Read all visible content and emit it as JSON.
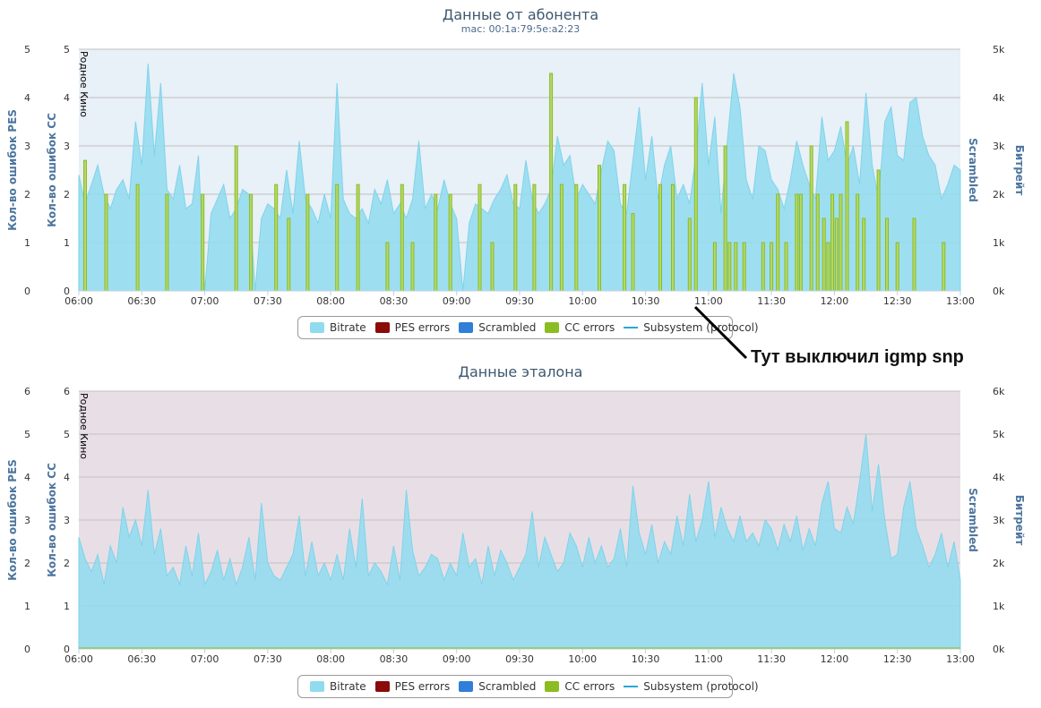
{
  "annotation": {
    "text": "Тут выключил igmp snp"
  },
  "chart_data": [
    {
      "type": "area",
      "title": "Данные от абонента",
      "subtitle": "mac: 00:1a:79:5e:a2:23",
      "plot_band_label": "Родное Кино",
      "background_color": "#e8f0f8",
      "left_axes": [
        {
          "title": "Кол-во ошибок PES",
          "range": [
            0,
            5
          ],
          "ticks": [
            "0",
            "1",
            "2",
            "3",
            "4",
            "5"
          ]
        },
        {
          "title": "Кол-во ошибок CC",
          "range": [
            0,
            5
          ],
          "ticks": [
            "0",
            "1",
            "2",
            "3",
            "4",
            "5"
          ]
        }
      ],
      "right_axes": [
        {
          "title": "Scrambled"
        },
        {
          "title": "Битрейт",
          "range": [
            0,
            5000
          ],
          "ticks": [
            "0k",
            "1k",
            "2k",
            "3k",
            "4k",
            "5k"
          ]
        }
      ],
      "x_axis": {
        "range_minutes": [
          0,
          420
        ],
        "ticks": [
          "06:00",
          "06:30",
          "07:00",
          "07:30",
          "08:00",
          "08:30",
          "09:00",
          "09:30",
          "10:00",
          "10:30",
          "11:00",
          "11:30",
          "12:00",
          "12:30",
          "13:00"
        ]
      },
      "legend": [
        {
          "name": "Bitrate",
          "color": "#8fdcef",
          "kind": "area"
        },
        {
          "name": "PES errors",
          "color": "#8b0a0a",
          "kind": "area"
        },
        {
          "name": "Scrambled",
          "color": "#2f7ed8",
          "kind": "area"
        },
        {
          "name": "CC errors",
          "color": "#8bbc21",
          "kind": "area"
        },
        {
          "name": "Subsystem (protocol)",
          "color": "#2aa7d8",
          "kind": "line"
        }
      ],
      "series": [
        {
          "name": "Bitrate",
          "color": "#8fdcef",
          "x_minutes": [
            0,
            3,
            6,
            9,
            12,
            15,
            18,
            21,
            24,
            27,
            30,
            33,
            36,
            39,
            42,
            45,
            48,
            51,
            54,
            57,
            60,
            63,
            66,
            69,
            72,
            75,
            78,
            81,
            84,
            87,
            90,
            93,
            96,
            99,
            102,
            105,
            108,
            111,
            114,
            117,
            120,
            123,
            126,
            129,
            132,
            135,
            138,
            141,
            144,
            147,
            150,
            153,
            156,
            159,
            162,
            165,
            168,
            171,
            174,
            177,
            180,
            183,
            186,
            189,
            192,
            195,
            198,
            201,
            204,
            207,
            210,
            213,
            216,
            219,
            222,
            225,
            228,
            231,
            234,
            237,
            240,
            243,
            246,
            249,
            252,
            255,
            258,
            261,
            264,
            267,
            270,
            273,
            276,
            279,
            282,
            285,
            288,
            291,
            294,
            297,
            300,
            303,
            306,
            309,
            312,
            315,
            318,
            321,
            324,
            327,
            330,
            333,
            336,
            339,
            342,
            345,
            348,
            351,
            354,
            357,
            360,
            363,
            366,
            369,
            372,
            375,
            378,
            381,
            384,
            387,
            390,
            393,
            396,
            399,
            402,
            405,
            408,
            411,
            414,
            417,
            420
          ],
          "values": [
            2400,
            1800,
            2200,
            2600,
            2000,
            1700,
            2100,
            2300,
            1900,
            3500,
            2600,
            4700,
            2800,
            4300,
            2100,
            1900,
            2600,
            1700,
            1800,
            2800,
            0,
            1600,
            1900,
            2200,
            1500,
            1700,
            2100,
            2000,
            0,
            1500,
            1800,
            1700,
            1500,
            2500,
            1600,
            3100,
            1900,
            1700,
            1400,
            2000,
            1500,
            4300,
            1900,
            1600,
            1500,
            1700,
            1400,
            2100,
            1800,
            2300,
            1600,
            1800,
            1500,
            1900,
            3100,
            1700,
            2000,
            1700,
            2300,
            1800,
            1500,
            0,
            1400,
            1800,
            1700,
            1600,
            1900,
            2100,
            2400,
            1800,
            1700,
            2700,
            1900,
            1600,
            1800,
            2100,
            3200,
            2600,
            2800,
            1900,
            2200,
            2000,
            1800,
            2500,
            3100,
            2900,
            1800,
            1600,
            2700,
            3800,
            2300,
            3200,
            1900,
            2600,
            3000,
            1900,
            2200,
            1800,
            2800,
            4300,
            2600,
            3600,
            1600,
            3100,
            4500,
            3800,
            2300,
            1900,
            3000,
            2900,
            2300,
            2100,
            1700,
            2300,
            3100,
            2600,
            2200,
            1900,
            3600,
            2700,
            2900,
            3400,
            2600,
            3000,
            2200,
            4100,
            2600,
            1900,
            3500,
            3800,
            2800,
            2700,
            3900,
            4000,
            3200,
            2800,
            2600,
            1900,
            2200,
            2600,
            2500
          ]
        },
        {
          "name": "CC errors",
          "color": "#8bbc21",
          "x_minutes": [
            3,
            13,
            28,
            42,
            59,
            75,
            82,
            94,
            100,
            109,
            123,
            133,
            147,
            154,
            159,
            170,
            177,
            191,
            197,
            208,
            217,
            225,
            230,
            237,
            248,
            260,
            264,
            277,
            283,
            291,
            294,
            303,
            308,
            310,
            313,
            317,
            326,
            330,
            333,
            337,
            342,
            344,
            349,
            352,
            355,
            357,
            359,
            361,
            363,
            366,
            371,
            374,
            381,
            385,
            390,
            398,
            412
          ],
          "values": [
            2.7,
            2.0,
            2.2,
            2.0,
            2.0,
            3.0,
            2.0,
            2.2,
            1.5,
            2.0,
            2.2,
            2.2,
            1.0,
            2.2,
            1.0,
            2.0,
            2.0,
            2.2,
            1.0,
            2.2,
            2.2,
            4.5,
            2.2,
            2.2,
            2.6,
            2.2,
            1.6,
            2.2,
            2.2,
            1.5,
            4.0,
            1.0,
            3.0,
            1.0,
            1.0,
            1.0,
            1.0,
            1.0,
            2.0,
            1.0,
            2.0,
            2.0,
            3.0,
            2.0,
            1.5,
            1.0,
            2.0,
            1.5,
            2.0,
            3.5,
            2.0,
            1.5,
            2.5,
            1.5,
            1.0,
            1.5,
            1.0
          ]
        }
      ]
    },
    {
      "type": "area",
      "title": "Данные эталона",
      "plot_band_label": "Родное Кино",
      "background_color": "#e8dfe6",
      "left_axes": [
        {
          "title": "Кол-во ошибок PES",
          "range": [
            0,
            6
          ],
          "ticks": [
            "0",
            "1",
            "2",
            "3",
            "4",
            "5",
            "6"
          ]
        },
        {
          "title": "Кол-во ошибок CC",
          "range": [
            0,
            6
          ],
          "ticks": [
            "0",
            "1",
            "2",
            "3",
            "4",
            "5",
            "6"
          ]
        }
      ],
      "right_axes": [
        {
          "title": "Scrambled"
        },
        {
          "title": "Битрейт",
          "range": [
            0,
            6000
          ],
          "ticks": [
            "0k",
            "1k",
            "2k",
            "3k",
            "4k",
            "5k",
            "6k"
          ]
        }
      ],
      "x_axis": {
        "range_minutes": [
          0,
          420
        ],
        "ticks": [
          "06:00",
          "06:30",
          "07:00",
          "07:30",
          "08:00",
          "08:30",
          "09:00",
          "09:30",
          "10:00",
          "10:30",
          "11:00",
          "11:30",
          "12:00",
          "12:30",
          "13:00"
        ]
      },
      "legend": [
        {
          "name": "Bitrate",
          "color": "#8fdcef",
          "kind": "area"
        },
        {
          "name": "PES errors",
          "color": "#8b0a0a",
          "kind": "area"
        },
        {
          "name": "Scrambled",
          "color": "#2f7ed8",
          "kind": "area"
        },
        {
          "name": "CC errors",
          "color": "#8bbc21",
          "kind": "area"
        },
        {
          "name": "Subsystem (protocol)",
          "color": "#2aa7d8",
          "kind": "line"
        }
      ],
      "series": [
        {
          "name": "Bitrate",
          "color": "#8fdcef",
          "x_minutes": [
            0,
            3,
            6,
            9,
            12,
            15,
            18,
            21,
            24,
            27,
            30,
            33,
            36,
            39,
            42,
            45,
            48,
            51,
            54,
            57,
            60,
            63,
            66,
            69,
            72,
            75,
            78,
            81,
            84,
            87,
            90,
            93,
            96,
            99,
            102,
            105,
            108,
            111,
            114,
            117,
            120,
            123,
            126,
            129,
            132,
            135,
            138,
            141,
            144,
            147,
            150,
            153,
            156,
            159,
            162,
            165,
            168,
            171,
            174,
            177,
            180,
            183,
            186,
            189,
            192,
            195,
            198,
            201,
            204,
            207,
            210,
            213,
            216,
            219,
            222,
            225,
            228,
            231,
            234,
            237,
            240,
            243,
            246,
            249,
            252,
            255,
            258,
            261,
            264,
            267,
            270,
            273,
            276,
            279,
            282,
            285,
            288,
            291,
            294,
            297,
            300,
            303,
            306,
            309,
            312,
            315,
            318,
            321,
            324,
            327,
            330,
            333,
            336,
            339,
            342,
            345,
            348,
            351,
            354,
            357,
            360,
            363,
            366,
            369,
            372,
            375,
            378,
            381,
            384,
            387,
            390,
            393,
            396,
            399,
            402,
            405,
            408,
            411,
            414,
            417,
            420
          ],
          "values": [
            2600,
            2100,
            1800,
            2200,
            1500,
            2400,
            2000,
            3300,
            2600,
            3000,
            2400,
            3700,
            2200,
            2800,
            1700,
            1900,
            1500,
            2400,
            1700,
            2700,
            1500,
            1800,
            2300,
            1600,
            2100,
            1500,
            1900,
            2600,
            1600,
            3400,
            2000,
            1700,
            1600,
            1900,
            2200,
            3100,
            1700,
            2500,
            1700,
            2000,
            1600,
            2200,
            1600,
            2800,
            1900,
            3500,
            1700,
            2000,
            1800,
            1500,
            2400,
            1600,
            3700,
            2300,
            1700,
            1900,
            2200,
            2100,
            1600,
            2000,
            1700,
            2700,
            1900,
            2100,
            1500,
            2400,
            1700,
            2300,
            2000,
            1600,
            1900,
            2200,
            3200,
            1900,
            2600,
            2200,
            1800,
            2000,
            2700,
            2400,
            1900,
            2600,
            2000,
            2400,
            1900,
            2100,
            2800,
            1900,
            3800,
            2700,
            2200,
            2900,
            2000,
            2500,
            2200,
            3100,
            2400,
            3600,
            2500,
            3000,
            3900,
            2600,
            3300,
            2800,
            2500,
            3100,
            2500,
            2700,
            2400,
            3000,
            2800,
            2300,
            2900,
            2500,
            3100,
            2300,
            2800,
            2400,
            3400,
            3900,
            2800,
            2700,
            3300,
            2900,
            3900,
            5000,
            3200,
            4300,
            3000,
            2100,
            2200,
            3300,
            3900,
            2800,
            2400,
            1900,
            2200,
            2700,
            1900,
            2500,
            1600
          ]
        },
        {
          "name": "CC errors",
          "color": "#8bbc21",
          "x_minutes": [
            0,
            420
          ],
          "values": [
            0,
            0
          ]
        }
      ]
    }
  ]
}
